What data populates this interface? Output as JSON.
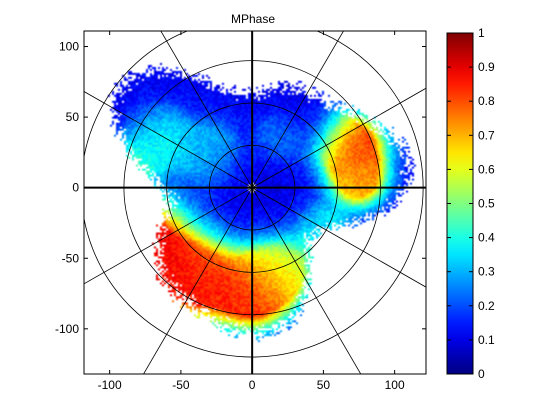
{
  "chart_data": {
    "type": "heatmap",
    "subtype": "polar-radar-ppi",
    "title": "MPhase",
    "xlabel": "",
    "ylabel": "",
    "xlim": [
      -118,
      122
    ],
    "ylim": [
      -132,
      111
    ],
    "x_ticks": [
      "-100",
      "-50",
      "0",
      "50",
      "100"
    ],
    "x_tick_values": [
      -100,
      -50,
      0,
      50,
      100
    ],
    "y_ticks": [
      "100",
      "50",
      "0",
      "-50",
      "-100"
    ],
    "y_tick_values": [
      100,
      50,
      0,
      -50,
      -100
    ],
    "range_rings": [
      30,
      60,
      90,
      120
    ],
    "radials_deg": [
      30,
      60,
      120,
      150,
      210,
      240,
      300,
      330
    ],
    "colorbar": {
      "colormap": "jet",
      "range": [
        0,
        1
      ],
      "ticks": [
        "0",
        "0.1",
        "0.2",
        "0.3",
        "0.4",
        "0.5",
        "0.6",
        "0.7",
        "0.8",
        "0.9",
        "1"
      ],
      "tick_values": [
        0,
        0.1,
        0.2,
        0.3,
        0.4,
        0.5,
        0.6,
        0.7,
        0.8,
        0.9,
        1
      ]
    },
    "blobs": [
      {
        "x": 0,
        "y": 0,
        "r": 35,
        "v": 0.1
      },
      {
        "x": -70,
        "y": 40,
        "r": 25,
        "v": 0.1
      },
      {
        "x": 40,
        "y": 50,
        "r": 25,
        "v": 0.1
      },
      {
        "x": -80,
        "y": -40,
        "r": 32,
        "v": 0.9
      },
      {
        "x": -40,
        "y": -65,
        "r": 28,
        "v": 0.85
      },
      {
        "x": 0,
        "y": -75,
        "r": 24,
        "v": 0.85
      },
      {
        "x": 20,
        "y": -60,
        "r": 22,
        "v": 0.6
      },
      {
        "x": -65,
        "y": 35,
        "r": 18,
        "v": 0.6
      },
      {
        "x": -85,
        "y": 20,
        "r": 15,
        "v": 0.5
      },
      {
        "x": 70,
        "y": 30,
        "r": 22,
        "v": 0.85
      },
      {
        "x": 75,
        "y": 5,
        "r": 18,
        "v": 0.7
      },
      {
        "x": 50,
        "y": -30,
        "r": 18,
        "v": 0.35
      },
      {
        "x": -30,
        "y": 25,
        "r": 20,
        "v": 0.35
      },
      {
        "x": 20,
        "y": 35,
        "r": 15,
        "v": 0.3
      }
    ]
  }
}
